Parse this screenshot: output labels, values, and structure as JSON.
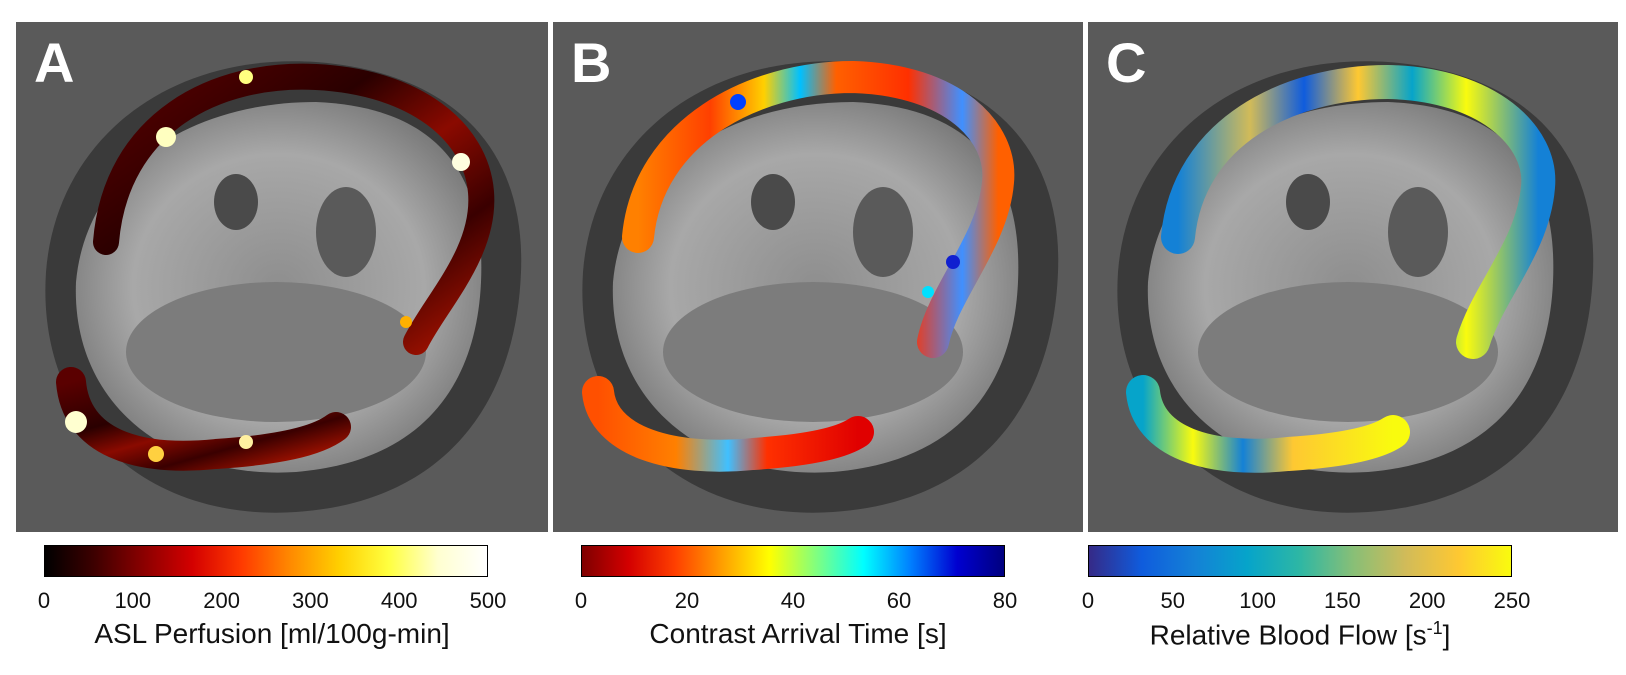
{
  "panels": [
    {
      "letter": "A",
      "colorbar": {
        "colormap": "hot",
        "stops": [
          "#000000",
          "#3d0000",
          "#8a0000",
          "#d40000",
          "#ff3a00",
          "#ff8a00",
          "#ffd000",
          "#ffff40",
          "#ffffd0",
          "#ffffff"
        ],
        "ticks": [
          "0",
          "100",
          "200",
          "300",
          "400",
          "500"
        ],
        "title_main": "ASL Perfusion [ml/100g-min]",
        "title_sup": ""
      }
    },
    {
      "letter": "B",
      "colorbar": {
        "colormap": "jet-reversed",
        "stops": [
          "#7f0000",
          "#d40000",
          "#ff4000",
          "#ffa000",
          "#ffff00",
          "#80ff80",
          "#00ffff",
          "#0080ff",
          "#0000d0",
          "#00007f"
        ],
        "ticks": [
          "0",
          "20",
          "40",
          "60",
          "80"
        ],
        "title_main": "Contrast Arrival Time [s]",
        "title_sup": ""
      }
    },
    {
      "letter": "C",
      "colorbar": {
        "colormap": "parula",
        "stops": [
          "#352a87",
          "#0f5cdd",
          "#1481d6",
          "#06a4ca",
          "#2eb7a4",
          "#87bf77",
          "#d1bb59",
          "#fec832",
          "#f9fb0e"
        ],
        "ticks": [
          "0",
          "50",
          "100",
          "150",
          "200",
          "250"
        ],
        "title_main": "Relative Blood Flow [s",
        "title_sup": "-1",
        "title_end": "]"
      }
    }
  ]
}
